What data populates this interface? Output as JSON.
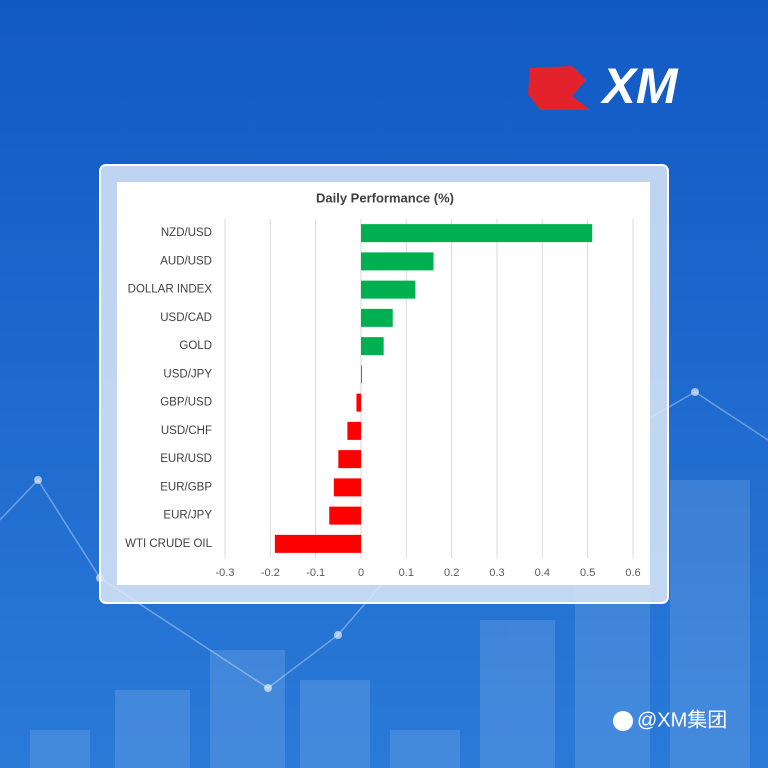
{
  "logo": "XM",
  "watermark": "@XM集团",
  "chart_data": {
    "type": "hbar",
    "title": "Daily Performance (%)",
    "categories": [
      "NZD/USD",
      "AUD/USD",
      "DOLLAR INDEX",
      "USD/CAD",
      "GOLD",
      "USD/JPY",
      "GBP/USD",
      "USD/CHF",
      "EUR/USD",
      "EUR/GBP",
      "EUR/JPY",
      "WTI CRUDE OIL"
    ],
    "values": [
      0.51,
      0.16,
      0.12,
      0.07,
      0.05,
      0,
      -0.01,
      -0.03,
      -0.05,
      -0.06,
      -0.07,
      -0.19
    ],
    "positive_color": "#00b050",
    "negative_color": "#ff0000",
    "xlim": [
      -0.3,
      0.6
    ],
    "xticks": [
      -0.3,
      -0.2,
      -0.1,
      0,
      0.1,
      0.2,
      0.3,
      0.4,
      0.5,
      0.6
    ],
    "grid": true
  }
}
